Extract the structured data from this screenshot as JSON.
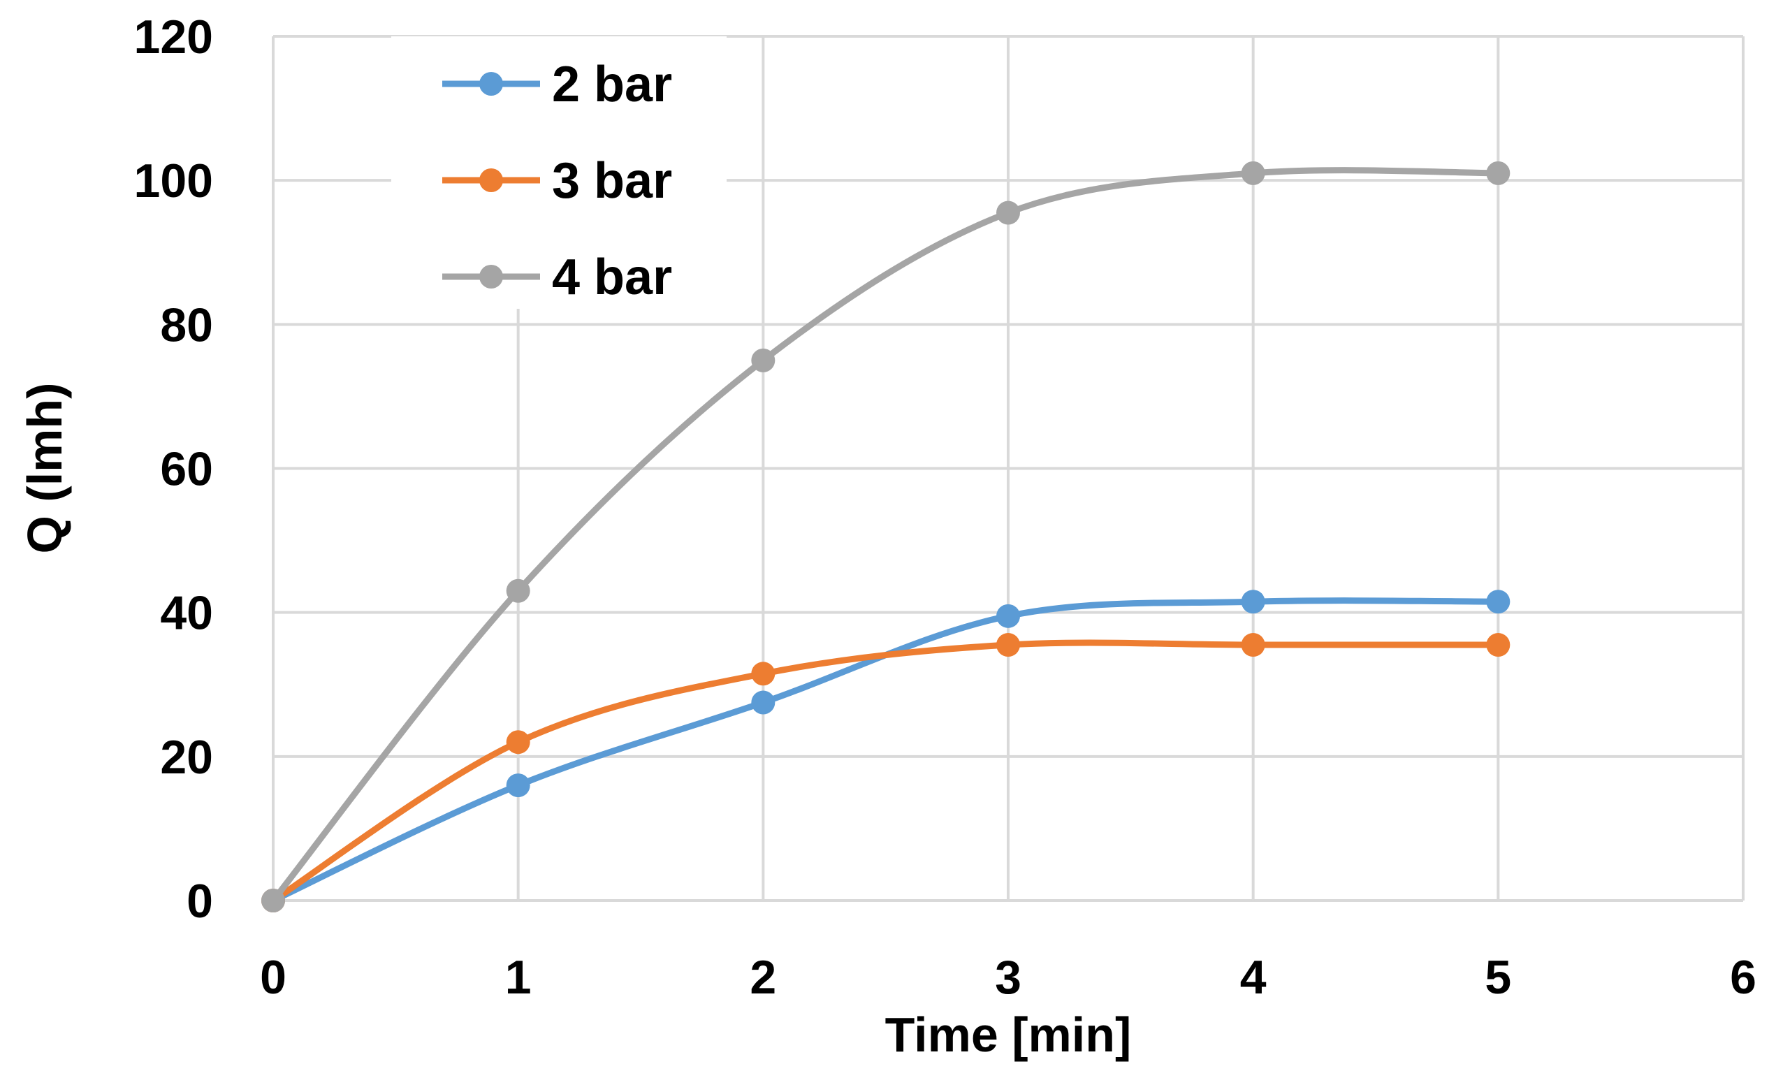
{
  "chart_data": {
    "type": "line",
    "title": "",
    "xlabel": "Time [min]",
    "ylabel": "Q (lmh)",
    "xlim": [
      0,
      6
    ],
    "ylim": [
      0,
      120
    ],
    "x_ticks": [
      0,
      1,
      2,
      3,
      4,
      5,
      6
    ],
    "y_ticks": [
      0,
      20,
      40,
      60,
      80,
      100,
      120
    ],
    "grid": true,
    "smooth": true,
    "legend_position": "top-left",
    "x": [
      0,
      1,
      2,
      3,
      4,
      5
    ],
    "series": [
      {
        "name": "2 bar",
        "color": "#5B9BD5",
        "values": [
          0,
          16,
          27.5,
          39.5,
          41.5,
          41.5
        ]
      },
      {
        "name": "3 bar",
        "color": "#ED7D31",
        "values": [
          0,
          22,
          31.5,
          35.5,
          35.5,
          35.5
        ]
      },
      {
        "name": "4 bar",
        "color": "#A5A5A5",
        "values": [
          0,
          43,
          75,
          95.5,
          101,
          101
        ]
      }
    ]
  }
}
